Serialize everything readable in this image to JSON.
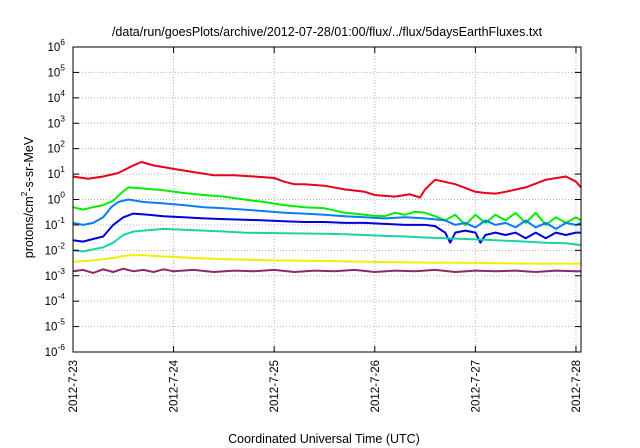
{
  "chart_data": {
    "type": "line",
    "title": "/data/run/goesPlots/archive/2012-07-28/01:00/flux/../flux/5daysEarthFluxes.txt",
    "xlabel": "Coordinated Universal Time (UTC)",
    "ylabel": {
      "prefix": "protons/cm",
      "sup": "2",
      "suffix": "-s-sr-MeV"
    },
    "x_unit": "days after 2012-07-23 00:00 UTC",
    "xlim": [
      0,
      5.05
    ],
    "ylim": [
      1e-06,
      1000000.0
    ],
    "yscale": "log",
    "grid": true,
    "x_ticks": [
      {
        "x": 0,
        "label": "2012-7-23"
      },
      {
        "x": 1,
        "label": "2012-7-24"
      },
      {
        "x": 2,
        "label": "2012-7-25"
      },
      {
        "x": 3,
        "label": "2012-7-26"
      },
      {
        "x": 4,
        "label": "2012-7-27"
      },
      {
        "x": 5,
        "label": "2012-7-28"
      }
    ],
    "y_ticks": [
      {
        "exp": -6,
        "base": "10",
        "sup": "-6"
      },
      {
        "exp": -5,
        "base": "10",
        "sup": "-5"
      },
      {
        "exp": -4,
        "base": "10",
        "sup": "-4"
      },
      {
        "exp": -3,
        "base": "10",
        "sup": "-3"
      },
      {
        "exp": -2,
        "base": "10",
        "sup": "-2"
      },
      {
        "exp": -1,
        "base": "10",
        "sup": "-1"
      },
      {
        "exp": 0,
        "base": "10",
        "sup": "0"
      },
      {
        "exp": 1,
        "base": "10",
        "sup": "1"
      },
      {
        "exp": 2,
        "base": "10",
        "sup": "2"
      },
      {
        "exp": 3,
        "base": "10",
        "sup": "3"
      },
      {
        "exp": 4,
        "base": "10",
        "sup": "4"
      },
      {
        "exp": 5,
        "base": "10",
        "sup": "5"
      },
      {
        "exp": 6,
        "base": "10",
        "sup": "6"
      }
    ],
    "series": [
      {
        "color": "#e8001a",
        "x": [
          0,
          0.15,
          0.3,
          0.45,
          0.6,
          0.68,
          0.8,
          1.0,
          1.2,
          1.4,
          1.6,
          1.8,
          2.0,
          2.1,
          2.2,
          2.3,
          2.5,
          2.7,
          2.9,
          3.0,
          3.2,
          3.35,
          3.45,
          3.5,
          3.6,
          3.8,
          4.0,
          4.1,
          4.2,
          4.3,
          4.5,
          4.7,
          4.9,
          5.0,
          5.05
        ],
        "y": [
          8,
          6.5,
          8,
          11,
          22,
          30,
          22,
          16,
          12,
          9,
          9,
          8,
          7,
          5,
          4,
          4,
          3.5,
          2.5,
          2,
          1.5,
          1.3,
          1.6,
          1.2,
          2.5,
          6,
          4,
          2,
          1.8,
          1.7,
          2,
          3,
          6,
          8,
          5,
          3
        ]
      },
      {
        "color": "#00ee00",
        "x": [
          0,
          0.1,
          0.2,
          0.3,
          0.4,
          0.48,
          0.55,
          0.7,
          0.9,
          1.1,
          1.3,
          1.5,
          1.7,
          1.9,
          2.1,
          2.3,
          2.5,
          2.7,
          2.8,
          2.9,
          3.0,
          3.1,
          3.2,
          3.3,
          3.4,
          3.5,
          3.6,
          3.7,
          3.8,
          3.9,
          4.0,
          4.1,
          4.2,
          4.3,
          4.4,
          4.5,
          4.6,
          4.7,
          4.8,
          4.9,
          5.0,
          5.05
        ],
        "y": [
          0.5,
          0.4,
          0.5,
          0.6,
          0.9,
          1.8,
          3,
          2.7,
          2.3,
          1.8,
          1.5,
          1.3,
          1.0,
          0.8,
          0.6,
          0.5,
          0.45,
          0.3,
          0.28,
          0.25,
          0.23,
          0.22,
          0.3,
          0.25,
          0.33,
          0.3,
          0.22,
          0.15,
          0.25,
          0.1,
          0.25,
          0.12,
          0.25,
          0.15,
          0.3,
          0.12,
          0.3,
          0.1,
          0.2,
          0.12,
          0.2,
          0.15
        ]
      },
      {
        "color": "#0a7cf5",
        "x": [
          0,
          0.1,
          0.2,
          0.3,
          0.38,
          0.45,
          0.55,
          0.7,
          0.9,
          1.1,
          1.3,
          1.5,
          1.7,
          1.9,
          2.1,
          2.3,
          2.5,
          2.7,
          2.9,
          3.1,
          3.3,
          3.5,
          3.7,
          3.8,
          3.9,
          4.0,
          4.1,
          4.2,
          4.3,
          4.4,
          4.5,
          4.6,
          4.7,
          4.8,
          4.9,
          5.0,
          5.05
        ],
        "y": [
          0.12,
          0.1,
          0.12,
          0.2,
          0.5,
          0.8,
          1.0,
          0.8,
          0.7,
          0.6,
          0.5,
          0.45,
          0.4,
          0.35,
          0.3,
          0.28,
          0.25,
          0.22,
          0.2,
          0.18,
          0.2,
          0.18,
          0.15,
          0.1,
          0.12,
          0.08,
          0.15,
          0.1,
          0.12,
          0.08,
          0.15,
          0.08,
          0.12,
          0.07,
          0.12,
          0.1,
          0.12
        ]
      },
      {
        "color": "#0000dd",
        "x": [
          0,
          0.1,
          0.2,
          0.3,
          0.4,
          0.5,
          0.6,
          0.75,
          0.9,
          1.1,
          1.3,
          1.5,
          1.7,
          1.9,
          2.1,
          2.3,
          2.5,
          2.7,
          2.9,
          3.1,
          3.3,
          3.5,
          3.6,
          3.7,
          3.75,
          3.8,
          3.9,
          4.0,
          4.05,
          4.1,
          4.2,
          4.3,
          4.4,
          4.5,
          4.6,
          4.7,
          4.8,
          4.9,
          5.0,
          5.05
        ],
        "y": [
          0.025,
          0.022,
          0.028,
          0.035,
          0.1,
          0.2,
          0.28,
          0.25,
          0.22,
          0.2,
          0.18,
          0.17,
          0.16,
          0.15,
          0.14,
          0.13,
          0.13,
          0.12,
          0.12,
          0.11,
          0.1,
          0.1,
          0.09,
          0.05,
          0.02,
          0.05,
          0.06,
          0.05,
          0.02,
          0.04,
          0.05,
          0.04,
          0.05,
          0.03,
          0.05,
          0.03,
          0.05,
          0.04,
          0.05,
          0.05
        ]
      },
      {
        "color": "#1ad1a8",
        "x": [
          0,
          0.1,
          0.2,
          0.3,
          0.4,
          0.5,
          0.6,
          0.7,
          0.9,
          1.1,
          1.3,
          1.5,
          1.7,
          1.9,
          2.1,
          2.3,
          2.5,
          2.7,
          2.9,
          3.1,
          3.3,
          3.5,
          3.7,
          3.9,
          4.1,
          4.3,
          4.5,
          4.7,
          4.9,
          5.0,
          5.05
        ],
        "y": [
          0.01,
          0.009,
          0.011,
          0.013,
          0.02,
          0.04,
          0.055,
          0.06,
          0.07,
          0.065,
          0.06,
          0.055,
          0.05,
          0.048,
          0.047,
          0.046,
          0.045,
          0.043,
          0.04,
          0.037,
          0.035,
          0.032,
          0.03,
          0.028,
          0.026,
          0.024,
          0.022,
          0.02,
          0.019,
          0.017,
          0.016
        ]
      },
      {
        "color": "#f0f000",
        "x": [
          0,
          0.2,
          0.4,
          0.5,
          0.6,
          0.7,
          0.8,
          1.0,
          1.2,
          1.5,
          2.0,
          2.5,
          3.0,
          3.5,
          4.0,
          4.5,
          5.0,
          5.05
        ],
        "y": [
          0.0035,
          0.004,
          0.005,
          0.006,
          0.0065,
          0.0065,
          0.006,
          0.0055,
          0.005,
          0.0045,
          0.004,
          0.0038,
          0.0035,
          0.0033,
          0.0032,
          0.003,
          0.003,
          0.003
        ]
      },
      {
        "color": "#8a2a6a",
        "x": [
          0,
          0.1,
          0.2,
          0.3,
          0.4,
          0.5,
          0.6,
          0.7,
          0.8,
          0.9,
          1.0,
          1.2,
          1.4,
          1.6,
          1.8,
          2.0,
          2.2,
          2.4,
          2.6,
          2.8,
          3.0,
          3.2,
          3.4,
          3.6,
          3.8,
          4.0,
          4.2,
          4.4,
          4.6,
          4.8,
          5.0,
          5.05
        ],
        "y": [
          0.0015,
          0.0017,
          0.0013,
          0.0018,
          0.0014,
          0.0019,
          0.0015,
          0.0017,
          0.0014,
          0.0018,
          0.0015,
          0.0017,
          0.0014,
          0.0016,
          0.0015,
          0.0017,
          0.0014,
          0.0016,
          0.0015,
          0.0017,
          0.0014,
          0.0016,
          0.0015,
          0.0017,
          0.0014,
          0.0016,
          0.0015,
          0.0016,
          0.0014,
          0.0016,
          0.0015,
          0.0015
        ]
      }
    ]
  }
}
